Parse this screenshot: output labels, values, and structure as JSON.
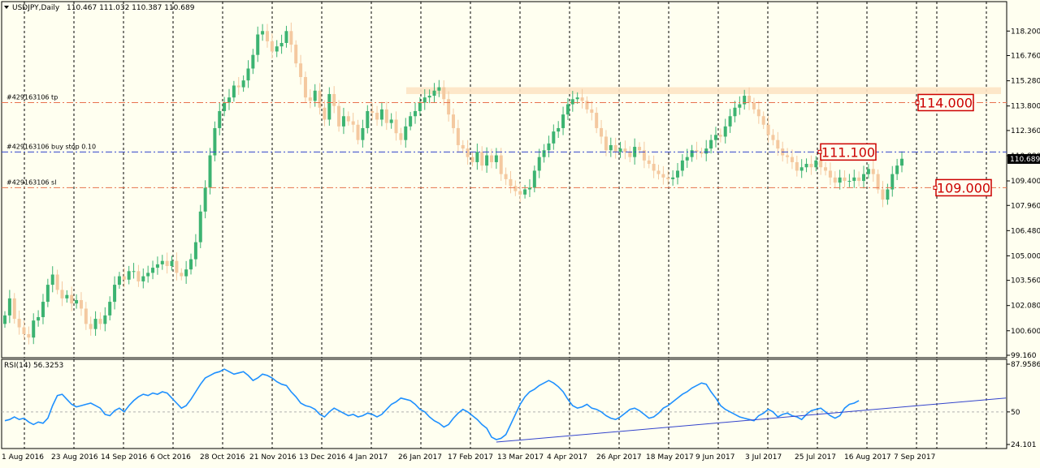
{
  "header": {
    "symbol_label": "USDJPY,Daily",
    "ohlc_label": "110.467 111.032 110.387 110.689"
  },
  "rsi_panel": {
    "label": "RSI(14) 56.3253"
  },
  "chart_data": {
    "type": "candlestick",
    "symbol": "USDJPY",
    "timeframe": "Daily",
    "last_ohlc": {
      "open": 110.467,
      "high": 111.032,
      "low": 110.387,
      "close": 110.689
    },
    "price_axis": {
      "range": [
        99.16,
        119.5
      ],
      "ticks": [
        "118.200",
        "116.760",
        "115.280",
        "113.800",
        "112.360",
        "110.880",
        "109.400",
        "107.960",
        "106.480",
        "105.000",
        "103.560",
        "102.080",
        "100.600",
        "99.160"
      ],
      "current_price_label": "110.689",
      "current_price": 110.689
    },
    "x_axis_labels": [
      "1 Aug 2016",
      "23 Aug 2016",
      "14 Sep 2016",
      "6 Oct 2016",
      "28 Oct 2016",
      "21 Nov 2016",
      "13 Dec 2016",
      "4 Jan 2017",
      "26 Jan 2017",
      "17 Feb 2017",
      "13 Mar 2017",
      "4 Apr 2017",
      "26 Apr 2017",
      "18 May 2017",
      "9 Jun 2017",
      "3 Jul 2017",
      "25 Jul 2017",
      "16 Aug 2017",
      "7 Sep 2017"
    ],
    "price_path": [
      101.5,
      102.5,
      101.3,
      100.8,
      100.4,
      100.2,
      101.2,
      101.4,
      102.3,
      103.3,
      103.9,
      103.0,
      102.5,
      102.7,
      102.2,
      102.4,
      101.9,
      101.0,
      100.7,
      101.3,
      101.0,
      101.5,
      102.3,
      103.3,
      103.8,
      103.6,
      104.1,
      104.1,
      103.5,
      103.8,
      104.0,
      104.3,
      104.5,
      104.7,
      104.4,
      104.7,
      104.0,
      103.8,
      104.2,
      104.8,
      105.8,
      107.6,
      109.0,
      110.9,
      112.5,
      113.5,
      114.0,
      114.3,
      115.0,
      114.9,
      115.3,
      116.0,
      116.8,
      118.0,
      118.2,
      117.6,
      117.0,
      117.3,
      117.5,
      118.2,
      117.4,
      116.3,
      115.5,
      114.3,
      114.1,
      114.7,
      113.7,
      113.0,
      114.5,
      113.8,
      112.6,
      113.2,
      112.9,
      112.7,
      111.8,
      112.5,
      113.5,
      113.4,
      113.0,
      113.6,
      112.8,
      113.0,
      112.2,
      111.8,
      112.6,
      113.2,
      113.5,
      114.0,
      114.3,
      114.4,
      114.7,
      114.9,
      114.2,
      113.3,
      112.5,
      111.5,
      111.3,
      110.8,
      110.5,
      111.1,
      110.3,
      110.9,
      110.5,
      110.9,
      109.8,
      109.5,
      109.1,
      108.8,
      108.6,
      108.9,
      109.0,
      110.0,
      110.8,
      111.2,
      111.6,
      112.3,
      112.5,
      113.3,
      113.9,
      114.2,
      114.3,
      114.1,
      113.6,
      113.4,
      112.5,
      112.0,
      111.2,
      111.5,
      111.1,
      111.3,
      111.1,
      110.8,
      111.4,
      111.2,
      110.6,
      110.4,
      110.0,
      109.8,
      109.6,
      109.5,
      109.6,
      110.0,
      110.6,
      110.8,
      111.2,
      111.1,
      111.0,
      111.3,
      111.8,
      112.1,
      112.0,
      112.6,
      113.2,
      113.7,
      113.9,
      114.4,
      114.0,
      113.6,
      113.2,
      112.7,
      112.1,
      111.8,
      111.3,
      110.9,
      110.8,
      110.5,
      110.0,
      110.2,
      110.4,
      110.2,
      110.6,
      110.2,
      110.0,
      109.6,
      109.3,
      109.6,
      109.4,
      109.4,
      109.6,
      109.4,
      109.8,
      110.1,
      109.8,
      108.9,
      108.3,
      108.9,
      109.8,
      110.3,
      110.7
    ],
    "orders": [
      {
        "label": "#429163106 tp",
        "price": 114.0,
        "price_label": "114.000"
      },
      {
        "label": "#429163106 buy stop 0.10",
        "price": 111.1,
        "price_label": "111.100"
      },
      {
        "label": "#429163106 sl",
        "price": 109.0,
        "price_label": "109.000"
      }
    ],
    "resistance_zone": [
      114.5,
      114.9
    ],
    "rsi": {
      "period": 14,
      "value": 56.3253,
      "range": [
        24.101,
        87.9586
      ],
      "ticks": [
        "87.9586",
        "50",
        "24.101"
      ],
      "level": 50,
      "values": [
        43,
        44,
        46,
        44,
        45,
        42,
        40,
        42,
        41,
        45,
        55,
        63,
        64,
        60,
        56,
        54,
        55,
        56,
        57,
        55,
        53,
        48,
        47,
        51,
        53,
        50,
        55,
        59,
        62,
        64,
        63,
        65,
        64,
        66,
        65,
        61,
        57,
        53,
        55,
        60,
        66,
        72,
        77,
        79,
        81,
        82,
        84,
        82,
        80,
        81,
        82,
        79,
        75,
        77,
        80,
        79,
        77,
        74,
        72,
        71,
        66,
        62,
        57,
        55,
        54,
        52,
        48,
        46,
        50,
        53,
        51,
        49,
        47,
        48,
        46,
        47,
        49,
        48,
        46,
        48,
        52,
        56,
        58,
        61,
        60,
        59,
        56,
        52,
        50,
        46,
        43,
        41,
        38,
        40,
        45,
        49,
        52,
        50,
        47,
        44,
        40,
        37,
        30,
        28,
        29,
        32,
        40,
        48,
        56,
        62,
        66,
        68,
        71,
        73,
        75,
        73,
        70,
        66,
        60,
        55,
        53,
        54,
        56,
        53,
        52,
        50,
        47,
        45,
        44,
        46,
        49,
        52,
        53,
        51,
        48,
        45,
        46,
        49,
        53,
        55,
        58,
        61,
        64,
        66,
        69,
        71,
        73,
        72,
        66,
        61,
        55,
        52,
        50,
        48,
        46,
        45,
        44,
        43,
        47,
        49,
        52,
        50,
        46,
        48,
        49,
        47,
        46,
        44,
        48,
        51,
        52,
        53,
        50,
        47,
        45,
        47,
        53,
        56,
        57,
        59
      ],
      "trendline": {
        "start_index": 103,
        "start_value": 26,
        "end_value": 61
      }
    }
  }
}
